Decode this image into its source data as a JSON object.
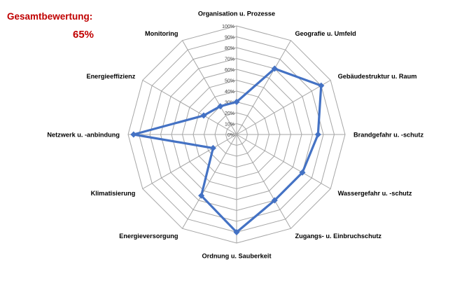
{
  "summary": {
    "label": "Gesamtbewertung:",
    "value": "65%"
  },
  "colors": {
    "series": "#4472c4",
    "grid": "#a6a6a6",
    "text": "#000000",
    "accent": "#c00000"
  },
  "chart_data": {
    "type": "radar",
    "categories": [
      "Organisation u. Prozesse",
      "Geografie u. Umfeld",
      "Gebäudestruktur u. Raum",
      "Brandgefahr u. -schutz",
      "Wassergefahr u. -schutz",
      "Zugangs- u. Einbruchschutz",
      "Ordnung u. Sauberkeit",
      "Energieversorgung",
      "Klimatisierung",
      "Netzwerk u. -anbindung",
      "Energieeffizienz",
      "Monitoring"
    ],
    "series": [
      {
        "values": [
          30,
          70,
          90,
          75,
          70,
          70,
          90,
          65,
          25,
          95,
          35,
          30
        ]
      }
    ],
    "rlim": [
      0,
      100
    ],
    "ticks": [
      "0%",
      "10%",
      "20%",
      "30%",
      "40%",
      "50%",
      "60%",
      "70%",
      "80%",
      "90%",
      "100%"
    ],
    "grid": true,
    "legend": "none"
  }
}
